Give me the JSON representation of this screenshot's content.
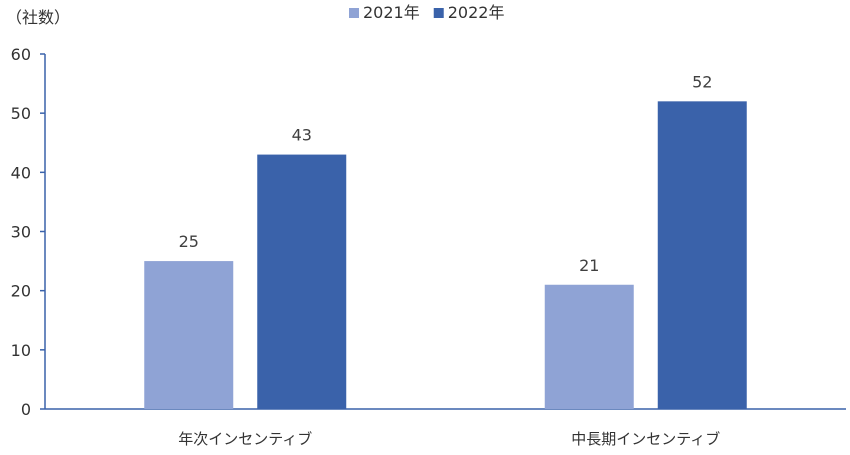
{
  "chart_data": {
    "type": "bar",
    "unit_label": "（社数）",
    "categories": [
      "年次インセンティブ",
      "中長期インセンティブ"
    ],
    "series": [
      {
        "name": "2021年",
        "values": [
          25,
          21
        ],
        "color": "#8FA3D5"
      },
      {
        "name": "2022年",
        "values": [
          43,
          52
        ],
        "color": "#3A62AA"
      }
    ],
    "ylim": [
      0,
      60
    ],
    "yticks": [
      0,
      10,
      20,
      30,
      40,
      50,
      60
    ],
    "grid": false,
    "legend_position": "top-center",
    "axis_color": "#3A62AA"
  }
}
